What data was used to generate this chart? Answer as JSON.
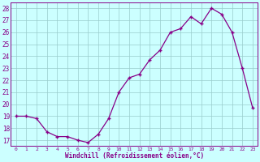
{
  "x": [
    0,
    1,
    2,
    3,
    4,
    5,
    6,
    7,
    8,
    9,
    10,
    11,
    12,
    13,
    14,
    15,
    16,
    17,
    18,
    19,
    20,
    21,
    22,
    23
  ],
  "y": [
    19.0,
    19.0,
    18.8,
    17.7,
    17.3,
    17.3,
    17.0,
    16.8,
    17.5,
    18.8,
    21.0,
    22.2,
    22.5,
    23.7,
    24.5,
    26.0,
    26.3,
    27.3,
    26.7,
    28.0,
    27.5,
    26.0,
    23.0,
    19.7
  ],
  "line_color": "#880088",
  "marker": "+",
  "marker_color": "#880088",
  "bg_color": "#ccffff",
  "grid_color": "#99cccc",
  "xlabel": "Windchill (Refroidissement éolien,°C)",
  "yticks": [
    17,
    18,
    19,
    20,
    21,
    22,
    23,
    24,
    25,
    26,
    27,
    28
  ],
  "xlim": [
    -0.5,
    23.5
  ],
  "ylim": [
    16.5,
    28.5
  ],
  "xtick_labels": [
    "0",
    "1",
    "2",
    "3",
    "4",
    "5",
    "6",
    "7",
    "8",
    "9",
    "10",
    "11",
    "12",
    "13",
    "14",
    "15",
    "16",
    "17",
    "18",
    "19",
    "20",
    "21",
    "22",
    "23"
  ]
}
